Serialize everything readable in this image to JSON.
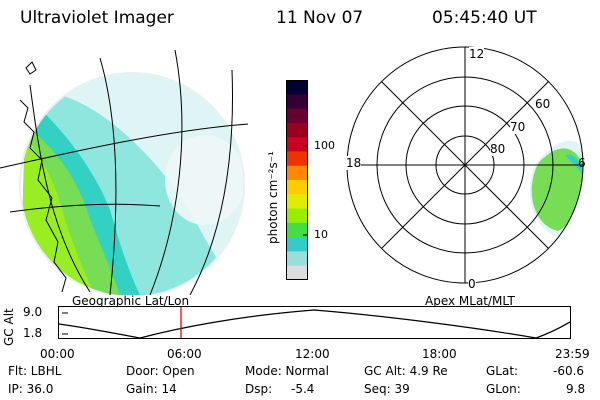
{
  "header": {
    "instrument": "Ultraviolet Imager",
    "date": "11 Nov 07",
    "time": "05:45:40 UT"
  },
  "geo_panel": {
    "label": "Geographic Lat/Lon"
  },
  "colorbar": {
    "label": "photon cm⁻²s⁻¹",
    "ticks": [
      "100",
      "10"
    ],
    "colors": [
      "#000033",
      "#330033",
      "#660033",
      "#990022",
      "#cc0022",
      "#ee3300",
      "#ff8800",
      "#ffcc00",
      "#ddee00",
      "#99ee00",
      "#44dd44",
      "#33cccc",
      "#99dddd",
      "#dddddd"
    ]
  },
  "polar_panel": {
    "label": "Apex MLat/MLT",
    "mlt_labels": {
      "top": "12",
      "left": "18",
      "right": "6",
      "bottom": "0"
    },
    "lat_labels": [
      "60",
      "70",
      "80"
    ]
  },
  "altitude_strip": {
    "axis_label": "GC Alt",
    "y_max": "9.0",
    "y_min": "1.8",
    "current_time_marker": "05:45",
    "x_ticks": [
      "00:00",
      "06:00",
      "12:00",
      "18:00",
      "23:59"
    ]
  },
  "status": {
    "flt": "Flt: LBHL",
    "ip": "IP: 36.0",
    "door": "Door: Open",
    "gain": "Gain: 14",
    "mode": "Mode: Normal",
    "dsp_label": "Dsp:",
    "dsp_value": "-5.4",
    "gc_alt": "GC Alt: 4.9 Re",
    "seq": "Seq: 39",
    "glat_label": "GLat:",
    "glat_value": "-60.6",
    "glon_label": "GLon:",
    "glon_value": "9.8"
  }
}
